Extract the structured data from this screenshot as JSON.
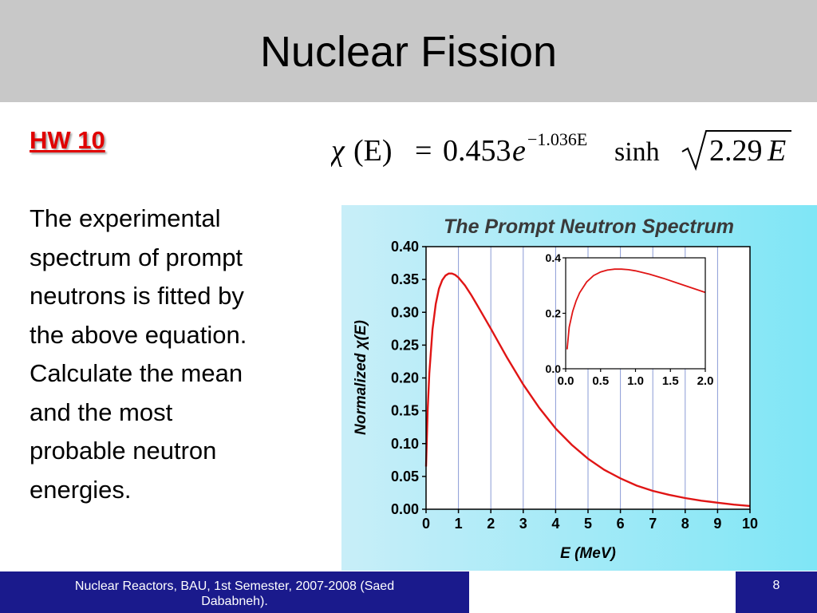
{
  "slide": {
    "title": "Nuclear Fission",
    "hw_label": "HW 10",
    "body_lines": [
      "The experimental",
      "spectrum of prompt",
      "neutrons is fitted by",
      "the above equation.",
      "Calculate the mean",
      "and the most",
      "probable neutron",
      "energies."
    ],
    "equation": {
      "chi": "χ",
      "lhs_arg": "(E)",
      "equals": "=",
      "coef": "0.453",
      "base": "e",
      "exponent": "−1.036E",
      "sinh": "sinh",
      "radicand_num": "2.29",
      "radicand_var": "E"
    },
    "footer": {
      "text_line1": "Nuclear Reactors, BAU, 1st Semester, 2007-2008   (Saed",
      "text_line2": "Dababneh).",
      "page": "8"
    }
  },
  "colors": {
    "title_bar": "#c8c8c8",
    "hw_red": "#e00000",
    "footer_blue": "#1a1a8c",
    "curve_red": "#e01515",
    "chart_bg_left": "#c8eef8",
    "chart_bg_right": "#7fe6f6",
    "grid_blue": "#8a9bd6"
  },
  "chart_data": [
    {
      "type": "line",
      "title": "The Prompt Neutron Spectrum",
      "xlabel": "E (MeV)",
      "ylabel": "Normalized χ(E)",
      "xlim": [
        0,
        10
      ],
      "ylim": [
        0,
        0.4
      ],
      "xticks": [
        "0",
        "1",
        "2",
        "3",
        "4",
        "5",
        "6",
        "7",
        "8",
        "9",
        "10"
      ],
      "yticks": [
        "0.00",
        "0.05",
        "0.10",
        "0.15",
        "0.20",
        "0.25",
        "0.30",
        "0.35",
        "0.40"
      ],
      "grid": "vertical",
      "series": [
        {
          "x": [
            0,
            0.05,
            0.1,
            0.2,
            0.3,
            0.4,
            0.5,
            0.6,
            0.7,
            0.8,
            0.9,
            1.0,
            1.2,
            1.4,
            1.6,
            1.8,
            2.0,
            2.5,
            3.0,
            3.5,
            4.0,
            4.5,
            5.0,
            5.5,
            6.0,
            6.5,
            7.0,
            7.5,
            8.0,
            8.5,
            9.0,
            9.5,
            10.0
          ],
          "y": [
            0.065,
            0.15,
            0.207,
            0.274,
            0.313,
            0.336,
            0.349,
            0.356,
            0.359,
            0.359,
            0.357,
            0.353,
            0.341,
            0.326,
            0.309,
            0.292,
            0.275,
            0.231,
            0.19,
            0.154,
            0.123,
            0.098,
            0.077,
            0.06,
            0.047,
            0.036,
            0.028,
            0.022,
            0.017,
            0.013,
            0.01,
            0.007,
            0.005
          ]
        }
      ]
    },
    {
      "type": "line",
      "xlim": [
        0,
        2.0
      ],
      "ylim": [
        0,
        0.4
      ],
      "xticks": [
        "0.0",
        "0.5",
        "1.0",
        "1.5",
        "2.0"
      ],
      "yticks": [
        "0.0",
        "0.2",
        "0.4"
      ],
      "series": [
        {
          "x": [
            0.02,
            0.05,
            0.1,
            0.15,
            0.2,
            0.3,
            0.4,
            0.5,
            0.6,
            0.7,
            0.8,
            0.9,
            1.0,
            1.2,
            1.4,
            1.6,
            1.8,
            2.0
          ],
          "y": [
            0.07,
            0.15,
            0.207,
            0.245,
            0.274,
            0.313,
            0.336,
            0.349,
            0.356,
            0.359,
            0.359,
            0.357,
            0.353,
            0.341,
            0.326,
            0.309,
            0.292,
            0.275
          ]
        }
      ]
    }
  ]
}
